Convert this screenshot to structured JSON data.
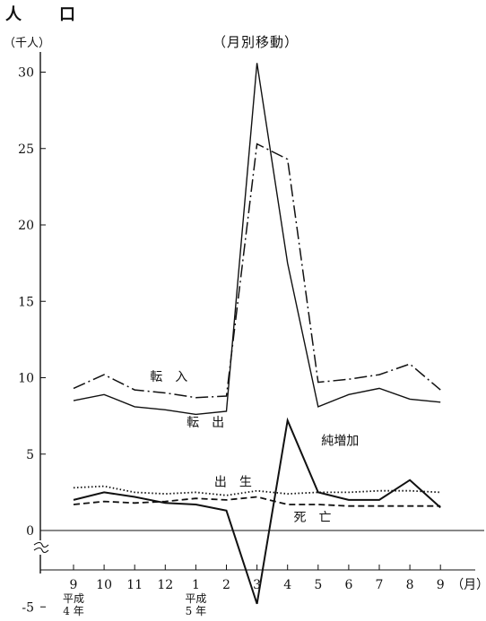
{
  "header": {
    "title": "人　　口",
    "subtitle": "（月別移動）",
    "unit_label": "（千人）"
  },
  "chart_data": {
    "type": "line",
    "ylim": [
      -5,
      30
    ],
    "y_ticks": [
      "30",
      "25",
      "20",
      "15",
      "10",
      "5",
      "0",
      "-5"
    ],
    "y_tick_values": [
      30,
      25,
      20,
      15,
      10,
      5,
      0,
      -5
    ],
    "categories": [
      "9",
      "10",
      "11",
      "12",
      "1",
      "2",
      "3",
      "4",
      "5",
      "6",
      "7",
      "8",
      "9"
    ],
    "x_unit": "（月）",
    "era_labels": [
      {
        "category_index": 0,
        "lines": [
          "平成",
          "4 年"
        ]
      },
      {
        "category_index": 4,
        "lines": [
          "平成",
          "5 年"
        ]
      }
    ],
    "y_axis_break": true,
    "grid": false,
    "series": [
      {
        "name": "転　入",
        "style": "dashdot",
        "values": [
          9.3,
          10.2,
          9.2,
          9.0,
          8.7,
          8.8,
          25.3,
          24.3,
          9.7,
          9.9,
          10.2,
          10.9,
          9.2
        ]
      },
      {
        "name": "転　出",
        "style": "solid",
        "values": [
          8.5,
          8.9,
          8.1,
          7.9,
          7.6,
          7.8,
          30.6,
          17.5,
          8.1,
          8.9,
          9.3,
          8.6,
          8.4
        ]
      },
      {
        "name": "純増加",
        "style": "solid-thick",
        "values": [
          2.0,
          2.5,
          2.2,
          1.8,
          1.7,
          1.3,
          -4.8,
          7.2,
          2.5,
          2.0,
          2.0,
          3.3,
          1.5
        ]
      },
      {
        "name": "出　生",
        "style": "dotted",
        "values": [
          2.8,
          2.9,
          2.5,
          2.4,
          2.5,
          2.3,
          2.6,
          2.4,
          2.5,
          2.5,
          2.6,
          2.6,
          2.5
        ]
      },
      {
        "name": "死　亡",
        "style": "dashed",
        "values": [
          1.7,
          1.9,
          1.8,
          1.9,
          2.1,
          2.0,
          2.2,
          1.7,
          1.7,
          1.6,
          1.6,
          1.6,
          1.6
        ]
      }
    ]
  }
}
